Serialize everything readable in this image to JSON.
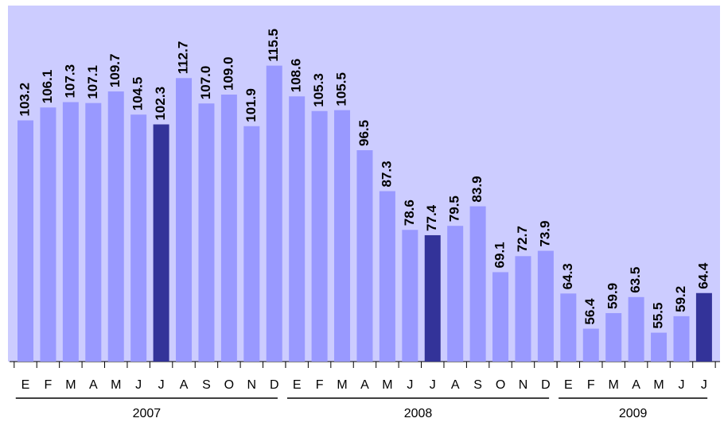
{
  "chart_data": {
    "type": "bar",
    "ylim": [
      49,
      129
    ],
    "groups": [
      {
        "name": "2007",
        "categories": [
          "E",
          "F",
          "M",
          "A",
          "M",
          "J",
          "J",
          "A",
          "S",
          "O",
          "N",
          "D"
        ],
        "values": [
          103.2,
          106.1,
          107.3,
          107.1,
          109.7,
          104.5,
          102.3,
          112.7,
          107.0,
          109.0,
          101.9,
          115.5
        ],
        "value_labels": [
          "103.2",
          "106.1",
          "107.3",
          "107.1",
          "109.7",
          "104.5",
          "102.3",
          "112.7",
          "107.0",
          "109.0",
          "101.9",
          "115.5"
        ],
        "colors": [
          "#9999ff",
          "#9999ff",
          "#9999ff",
          "#9999ff",
          "#9999ff",
          "#9999ff",
          "#333399",
          "#9999ff",
          "#9999ff",
          "#9999ff",
          "#9999ff",
          "#9999ff"
        ]
      },
      {
        "name": "2008",
        "categories": [
          "E",
          "F",
          "M",
          "A",
          "M",
          "J",
          "J",
          "A",
          "S",
          "O",
          "N",
          "D"
        ],
        "values": [
          108.6,
          105.3,
          105.5,
          96.5,
          87.3,
          78.6,
          77.4,
          79.5,
          83.9,
          69.1,
          72.7,
          73.9
        ],
        "value_labels": [
          "108.6",
          "105.3",
          "105.5",
          "96.5",
          "87.3",
          "78.6",
          "77.4",
          "79.5",
          "83.9",
          "69.1",
          "72.7",
          "73.9"
        ],
        "colors": [
          "#9999ff",
          "#9999ff",
          "#9999ff",
          "#9999ff",
          "#9999ff",
          "#9999ff",
          "#333399",
          "#9999ff",
          "#9999ff",
          "#9999ff",
          "#9999ff",
          "#9999ff"
        ]
      },
      {
        "name": "2009",
        "categories": [
          "E",
          "F",
          "M",
          "A",
          "M",
          "J",
          "J"
        ],
        "values": [
          64.3,
          56.4,
          59.9,
          63.5,
          55.5,
          59.2,
          64.4
        ],
        "value_labels": [
          "64.3",
          "56.4",
          "59.9",
          "63.5",
          "55.5",
          "59.2",
          "64.4"
        ],
        "colors": [
          "#9999ff",
          "#9999ff",
          "#9999ff",
          "#9999ff",
          "#9999ff",
          "#9999ff",
          "#333399"
        ]
      }
    ]
  }
}
